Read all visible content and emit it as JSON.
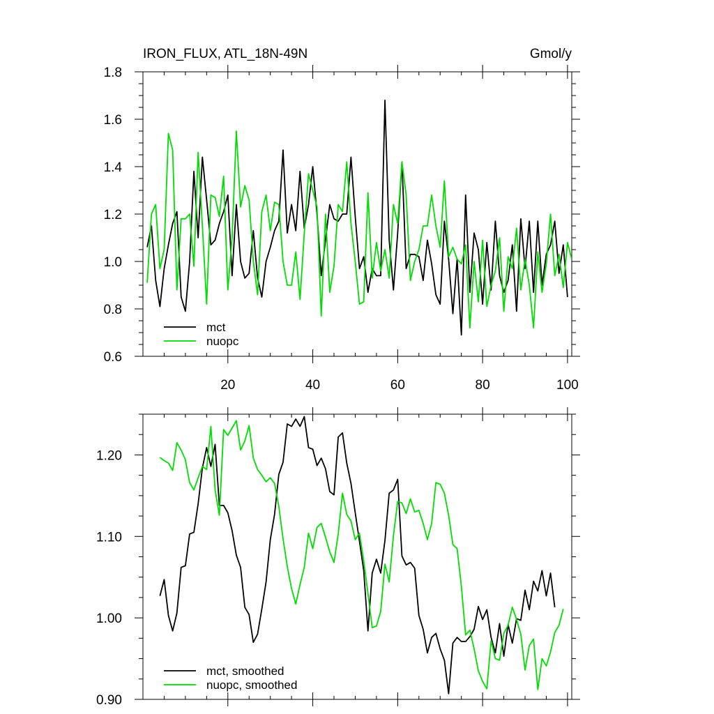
{
  "chart_data": [
    {
      "type": "line",
      "title": "IRON_FLUX, ATL_18N-49N",
      "units": "Gmol/y",
      "xlabel": "",
      "ylabel": "",
      "xlim": [
        0,
        101
      ],
      "ylim": [
        0.6,
        1.8
      ],
      "x_ticks": [
        20,
        40,
        60,
        80,
        100
      ],
      "y_ticks": [
        0.6,
        0.8,
        1.0,
        1.2,
        1.4,
        1.6,
        1.8
      ],
      "y_tick_labels": [
        "0.6",
        "0.8",
        "1.0",
        "1.2",
        "1.4",
        "1.6",
        "1.8"
      ],
      "legend_position": "bottom-left",
      "x_start": 1,
      "series": [
        {
          "name": "mct",
          "color": "#000000",
          "values": [
            1.06,
            1.15,
            0.92,
            0.81,
            0.97,
            1.07,
            1.16,
            1.21,
            0.85,
            0.79,
            1.0,
            1.38,
            1.1,
            1.44,
            1.26,
            1.07,
            1.09,
            1.16,
            1.21,
            1.28,
            0.94,
            1.24,
            1.0,
            0.93,
            0.95,
            1.13,
            0.93,
            0.85,
            1.0,
            1.06,
            1.13,
            1.17,
            1.47,
            1.12,
            1.24,
            1.13,
            1.38,
            1.14,
            1.24,
            1.4,
            1.2,
            0.94,
            1.09,
            1.24,
            1.18,
            1.17,
            1.2,
            1.2,
            1.44,
            1.19,
            0.97,
            1.02,
            0.87,
            0.97,
            0.94,
            0.94,
            1.68,
            1.09,
            0.88,
            1.12,
            1.42,
            0.97,
            1.03,
            1.03,
            1.02,
            0.92,
            1.09,
            0.99,
            0.86,
            0.82,
            1.17,
            1.01,
            0.78,
            1.01,
            0.69,
            1.28,
            0.87,
            1.12,
            1.05,
            0.82,
            1.08,
            0.88,
            1.17,
            0.94,
            0.87,
            0.92,
            1.07,
            0.79,
            1.18,
            0.97,
            1.17,
            0.87,
            1.17,
            0.9,
            1.03,
            1.07,
            1.17,
            0.95,
            1.07,
            0.85
          ]
        },
        {
          "name": "nuopc",
          "color": "#00dd00",
          "values": [
            0.91,
            1.2,
            1.24,
            0.97,
            1.05,
            1.54,
            1.47,
            0.88,
            1.18,
            1.18,
            1.2,
            0.98,
            1.46,
            1.15,
            0.82,
            1.28,
            1.27,
            1.19,
            1.36,
            0.88,
            1.1,
            1.55,
            1.23,
            1.32,
            1.26,
            1.0,
            0.86,
            1.21,
            1.28,
            1.13,
            1.25,
            1.24,
            1.0,
            0.9,
            0.9,
            1.04,
            0.84,
            1.12,
            1.37,
            1.3,
            1.23,
            0.77,
            1.2,
            0.87,
            0.98,
            1.24,
            1.21,
            1.42,
            1.16,
            1.0,
            0.82,
            0.83,
            1.29,
            0.93,
            1.08,
            0.96,
            1.05,
            0.93,
            1.24,
            1.16,
            1.42,
            1.28,
            0.92,
            1.0,
            1.05,
            1.15,
            1.15,
            1.28,
            1.15,
            1.06,
            1.34,
            1.02,
            1.06,
            1.01,
            0.99,
            1.07,
            0.72,
            1.0,
            0.83,
            1.09,
            0.81,
            0.9,
            0.96,
            1.1,
            0.79,
            1.02,
            0.97,
            1.14,
            0.88,
            1.01,
            0.9,
            0.72,
            1.04,
            0.87,
            0.99,
            1.2,
            0.94,
            1.03,
            0.89,
            1.08,
            1.01
          ]
        }
      ]
    },
    {
      "type": "line",
      "xlabel": "",
      "ylabel": "",
      "xlim": [
        0,
        101
      ],
      "ylim": [
        0.9,
        1.25
      ],
      "x_ticks": [
        20,
        40,
        60,
        80,
        100
      ],
      "y_ticks": [
        0.9,
        1.0,
        1.1,
        1.2
      ],
      "y_tick_labels": [
        "0.90",
        "1.00",
        "1.10",
        "1.20"
      ],
      "legend_position": "bottom-left",
      "x_start": 4,
      "series": [
        {
          "name": "mct, smoothed",
          "color": "#000000",
          "values": [
            1.027,
            1.047,
            1.003,
            0.984,
            1.006,
            1.062,
            1.064,
            1.103,
            1.105,
            1.14,
            1.184,
            1.209,
            1.186,
            1.213,
            1.138,
            1.138,
            1.129,
            1.107,
            1.077,
            1.062,
            1.013,
            1.004,
            0.97,
            0.98,
            1.011,
            1.044,
            1.096,
            1.127,
            1.176,
            1.191,
            1.238,
            1.235,
            1.244,
            1.235,
            1.247,
            1.209,
            1.207,
            1.187,
            1.196,
            1.183,
            1.155,
            1.151,
            1.222,
            1.227,
            1.19,
            1.165,
            1.129,
            1.094,
            1.058,
            0.984,
            1.055,
            1.072,
            1.055,
            1.095,
            1.153,
            1.157,
            1.17,
            1.076,
            1.065,
            1.068,
            1.061,
            1.003,
            0.986,
            0.957,
            0.976,
            0.981,
            0.962,
            0.948,
            0.907,
            0.969,
            0.976,
            0.971,
            0.971,
            0.977,
            0.986,
            1.014,
            0.998,
            1.01,
            0.976,
            0.957,
            0.993,
            0.953,
            0.992,
            0.969,
            0.999,
            0.997,
            1.034,
            1.01,
            1.045,
            1.033,
            1.058,
            1.027,
            1.055,
            1.013
          ]
        },
        {
          "name": "nuopc, smoothed",
          "color": "#00dd00",
          "values": [
            1.197,
            1.193,
            1.19,
            1.181,
            1.215,
            1.206,
            1.194,
            1.166,
            1.157,
            1.172,
            1.186,
            1.182,
            1.235,
            1.157,
            1.126,
            1.231,
            1.224,
            1.233,
            1.242,
            1.206,
            1.217,
            1.236,
            1.196,
            1.182,
            1.175,
            1.167,
            1.172,
            1.165,
            1.137,
            1.097,
            1.063,
            1.036,
            1.017,
            1.041,
            1.062,
            1.104,
            1.085,
            1.111,
            1.116,
            1.099,
            1.081,
            1.068,
            1.103,
            1.153,
            1.127,
            1.119,
            1.096,
            1.104,
            1.07,
            1.03,
            0.988,
            0.99,
            1.008,
            1.066,
            1.044,
            1.101,
            1.143,
            1.141,
            1.128,
            1.146,
            1.13,
            1.132,
            1.116,
            1.096,
            1.116,
            1.166,
            1.164,
            1.153,
            1.126,
            1.09,
            1.085,
            1.039,
            0.979,
            0.985,
            0.962,
            0.935,
            0.922,
            0.913,
            0.972,
            0.95,
            0.948,
            0.981,
            0.991,
            1.013,
            0.998,
            0.98,
            0.936,
            0.966,
            0.974,
            0.912,
            0.95,
            0.941,
            0.958,
            0.982,
            0.991,
            1.011
          ]
        }
      ]
    }
  ]
}
